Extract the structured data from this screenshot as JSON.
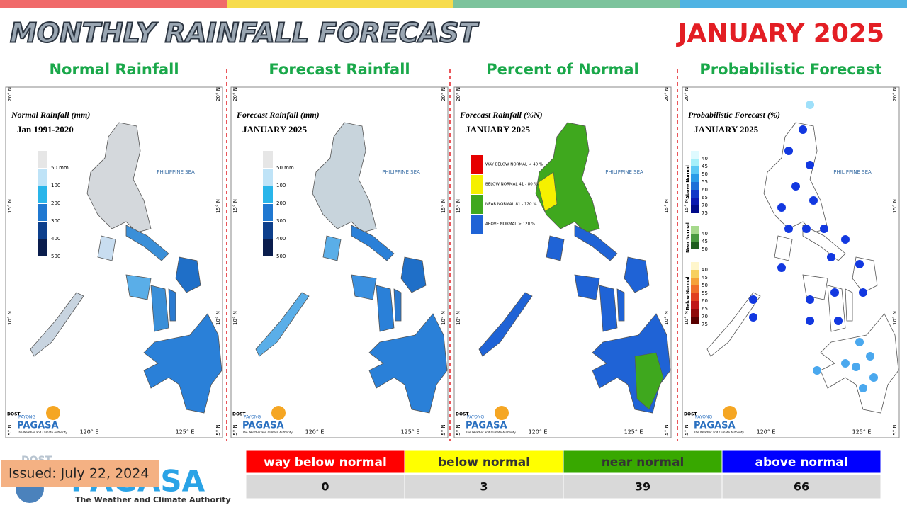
{
  "header": {
    "title": "MONTHLY RAINFALL FORECAST",
    "month": "JANUARY 2025"
  },
  "panels": [
    {
      "heading": "Normal Rainfall",
      "map_title": "Normal Rainfall (mm)",
      "map_subtitle": "Jan 1991-2020",
      "style": "normal",
      "legend": [
        {
          "label": "50 mm",
          "color": "#e6e6e6"
        },
        {
          "label": "100",
          "color": "#bfe3f7"
        },
        {
          "label": "200",
          "color": "#29b5ea"
        },
        {
          "label": "300",
          "color": "#1f78d1"
        },
        {
          "label": "400",
          "color": "#0d3f8c"
        },
        {
          "label": "500",
          "color": "#0a1d4d"
        }
      ]
    },
    {
      "heading": "Forecast Rainfall",
      "map_title": "Forecast Rainfall (mm)",
      "map_subtitle": "JANUARY 2025",
      "style": "forecast",
      "legend": [
        {
          "label": "50 mm",
          "color": "#e6e6e6"
        },
        {
          "label": "100",
          "color": "#bfe3f7"
        },
        {
          "label": "200",
          "color": "#29b5ea"
        },
        {
          "label": "300",
          "color": "#1f78d1"
        },
        {
          "label": "400",
          "color": "#0d3f8c"
        },
        {
          "label": "500",
          "color": "#0a1d4d"
        }
      ]
    },
    {
      "heading": "Percent of Normal",
      "map_title": "Forecast Rainfall (%N)",
      "map_subtitle": "JANUARY 2025",
      "style": "percent",
      "legend": [
        {
          "label": "WAY BELOW NORMAL < 40 %",
          "color": "#e60000"
        },
        {
          "label": "BELOW NORMAL 41 - 80 %",
          "color": "#f5f000"
        },
        {
          "label": "NEAR NORMAL 81 - 120 %",
          "color": "#3fa81e"
        },
        {
          "label": "ABOVE NORMAL > 120 %",
          "color": "#1f63d6"
        }
      ]
    },
    {
      "heading": "Probabilistic Forecast",
      "map_title": "Probabilistic Forecast (%)",
      "map_subtitle": "JANUARY 2025",
      "style": "prob",
      "legend": []
    }
  ],
  "prob_legend": {
    "groups": [
      {
        "name": "Above Normal",
        "ticks": [
          "40",
          "45",
          "50",
          "55",
          "60",
          "65",
          "70",
          "75"
        ],
        "colors": [
          "#dffaff",
          "#a6f0fa",
          "#5cc9f5",
          "#2a9be8",
          "#1d6fd8",
          "#1238c8",
          "#0a18b0",
          "#000a8a"
        ]
      },
      {
        "name": "Near Normal",
        "ticks": [
          "40",
          "45",
          "50"
        ],
        "colors": [
          "#a6d98c",
          "#4a9a40",
          "#1f5f1f"
        ]
      },
      {
        "name": "Below Normal",
        "ticks": [
          "40",
          "45",
          "50",
          "55",
          "60",
          "65",
          "70",
          "75"
        ],
        "colors": [
          "#fff6cc",
          "#f7d060",
          "#f5a23a",
          "#f0702a",
          "#e04020",
          "#c01818",
          "#900a0a",
          "#5a0000"
        ]
      }
    ]
  },
  "map_labels": {
    "sea": "PHILIPPINE SEA",
    "lat": [
      "20° N",
      "15° N",
      "10° N",
      "5° N"
    ],
    "lon": [
      "120° E",
      "125° E"
    ]
  },
  "logo": {
    "agency": "DOST",
    "payong": "PAYONG",
    "name": "PAGASA",
    "tagline": "The Weather and Climate Authority"
  },
  "table": {
    "headers": [
      "way below normal",
      "below normal",
      "near normal",
      "above normal"
    ],
    "colors": [
      "#ff0000",
      "#ffff00",
      "#38a800",
      "#0000ff"
    ],
    "text_colors": [
      "#ffffff",
      "#333333",
      "#333333",
      "#ffffff"
    ],
    "values": [
      0,
      3,
      39,
      66
    ]
  },
  "issued": "Issued: July 22, 2024"
}
